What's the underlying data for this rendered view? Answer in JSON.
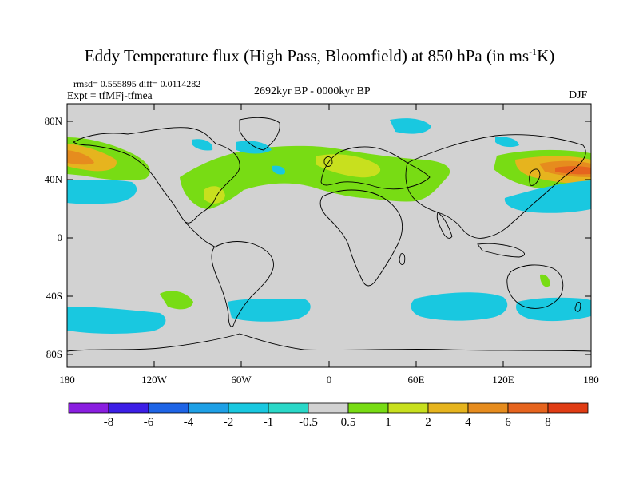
{
  "title": {
    "main": "Eddy Temperature flux (High Pass, Bloomfield) at 850 hPa (in ms",
    "sup": "-1",
    "end": "K)"
  },
  "stats": "rmsd= 0.555895 diff= 0.0114282",
  "experiment": "Expt = tfMFj-tfmea",
  "period": "2692kyr BP - 0000kyr BP",
  "season": "DJF",
  "y_axis_labels": [
    "80N",
    "40N",
    "0",
    "40S",
    "80S"
  ],
  "x_axis_labels": [
    "180",
    "120W",
    "60W",
    "0",
    "60E",
    "120E",
    "180"
  ],
  "colorbar": {
    "labels": [
      "-8",
      "-6",
      "-4",
      "-2",
      "-1",
      "-0.5",
      "0.5",
      "1",
      "2",
      "4",
      "6",
      "8"
    ],
    "colors": [
      "#8a1ee0",
      "#3c1ee6",
      "#1e64e6",
      "#1ea0e6",
      "#19c8e0",
      "#2ad8c8",
      "#d2d2d2",
      "#78dc14",
      "#c8e01e",
      "#e6b41e",
      "#e68c1e",
      "#e6641e",
      "#e03c14"
    ]
  },
  "field_colors": {
    "background": "#d2d2d2",
    "cyan": "#19c8e0",
    "green": "#78dc14",
    "yellow_green": "#c8e01e",
    "orange": "#e6b41e",
    "dark_orange": "#e68c1e",
    "red_orange": "#e6641e"
  }
}
